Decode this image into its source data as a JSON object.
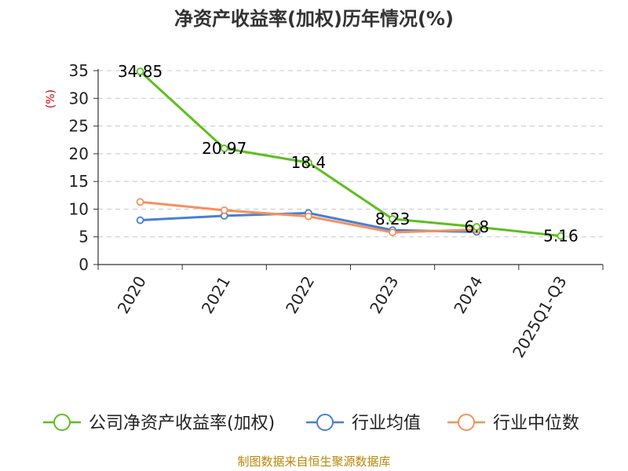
{
  "chart_data": {
    "type": "line",
    "title": "净资产收益率(加权)历年情况(%)",
    "ylabel": "(%)",
    "xlabel": "",
    "categories": [
      "2020",
      "2021",
      "2022",
      "2023",
      "2024",
      "2025Q1-Q3"
    ],
    "ylim": [
      0,
      35
    ],
    "yticks": [
      0,
      5,
      10,
      15,
      20,
      25,
      30,
      35
    ],
    "grid": true,
    "legend_position": "bottom",
    "series": [
      {
        "name": "公司净资产收益率(加权)",
        "color": "#5dbf1e",
        "values": [
          34.85,
          20.97,
          18.4,
          8.23,
          6.8,
          5.16
        ],
        "labels": [
          "34.85",
          "20.97",
          "18.4",
          "8.23",
          "6.8",
          "5.16"
        ]
      },
      {
        "name": "行业均值",
        "color": "#4a7fd4",
        "values": [
          8.0,
          8.8,
          9.3,
          6.2,
          5.9,
          null
        ]
      },
      {
        "name": "行业中位数",
        "color": "#f5915c",
        "values": [
          11.3,
          9.8,
          8.7,
          5.8,
          6.3,
          null
        ]
      }
    ]
  },
  "source": "制图数据来自恒生聚源数据库"
}
